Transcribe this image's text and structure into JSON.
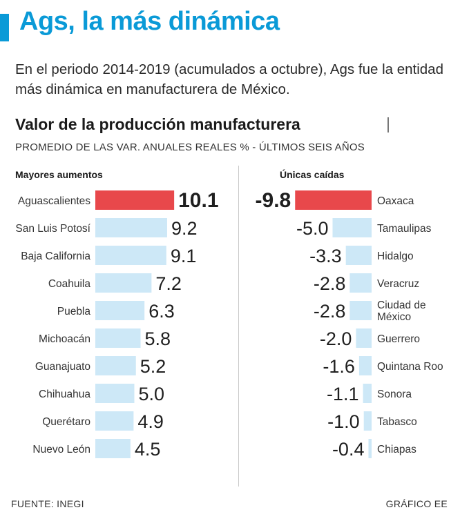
{
  "header": {
    "title": "Ags, la más dinámica",
    "intro": "En el periodo 2014-2019 (acumulados a octubre), Ags fue la entidad más dinámica en manufacturera de México."
  },
  "colors": {
    "accent": "#0a9ad7",
    "highlight": "#e8484b",
    "bar": "#cde8f7"
  },
  "chart_data": {
    "type": "bar",
    "title": "Valor de la producción manufacturera",
    "subtitle": "PROMEDIO DE LAS VAR. ANUALES REALES % - ÚLTIMOS SEIS AÑOS",
    "panels": [
      {
        "heading": "Mayores aumentos",
        "categories": [
          "Aguascalientes",
          "San Luis Potosí",
          "Baja California",
          "Coahuila",
          "Puebla",
          "Michoacán",
          "Guanajuato",
          "Chihuahua",
          "Querétaro",
          "Nuevo León"
        ],
        "values": [
          10.1,
          9.2,
          9.1,
          7.2,
          6.3,
          5.8,
          5.2,
          5.0,
          4.9,
          4.5
        ],
        "labels": [
          "10.1",
          "9.2",
          "9.1",
          "7.2",
          "6.3",
          "5.8",
          "5.2",
          "5.0",
          "4.9",
          "4.5"
        ],
        "highlight_index": 0
      },
      {
        "heading": "Únicas caídas",
        "categories": [
          "Oaxaca",
          "Tamaulipas",
          "Hidalgo",
          "Veracruz",
          "Ciudad de México",
          "Guerrero",
          "Quintana Roo",
          "Sonora",
          "Tabasco",
          "Chiapas"
        ],
        "values": [
          -9.8,
          -5.0,
          -3.3,
          -2.8,
          -2.8,
          -2.0,
          -1.6,
          -1.1,
          -1.0,
          -0.4
        ],
        "labels": [
          "-9.8",
          "-5.0",
          "-3.3",
          "-2.8",
          "-2.8",
          "-2.0",
          "-1.6",
          "-1.1",
          "-1.0",
          "-0.4"
        ],
        "highlight_index": 0
      }
    ]
  },
  "footer": {
    "source": "FUENTE: INEGI",
    "credit": "GRÁFICO EE"
  }
}
